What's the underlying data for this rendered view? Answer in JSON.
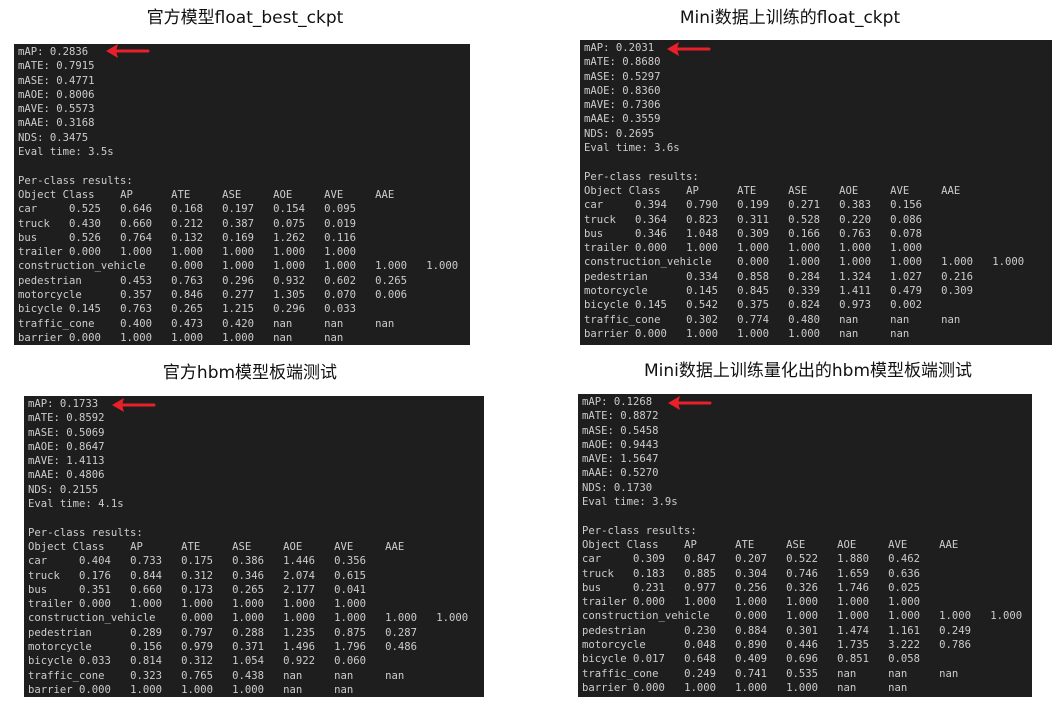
{
  "accent_arrow_color": "#e8202a",
  "terminal_bg": "#1e1e1e",
  "terminal_fg": "#cccccc",
  "columns": [
    "Object Class",
    "AP",
    "ATE",
    "ASE",
    "AOE",
    "AVE",
    "AAE"
  ],
  "per_class_label": "Per-class results:",
  "panels": [
    {
      "title": "官方模型float_best_ckpt",
      "summary": [
        "mAP: 0.2836",
        "mATE: 0.7915",
        "mASE: 0.4771",
        "mAOE: 0.8006",
        "mAVE: 0.5573",
        "mAAE: 0.3168",
        "NDS: 0.3475",
        "Eval time: 3.5s"
      ],
      "rows": [
        [
          "car",
          "0.525",
          "0.646",
          "0.168",
          "0.197",
          "0.154",
          "0.095"
        ],
        [
          "truck",
          "0.430",
          "0.660",
          "0.212",
          "0.387",
          "0.075",
          "0.019"
        ],
        [
          "bus",
          "0.526",
          "0.764",
          "0.132",
          "0.169",
          "1.262",
          "0.116"
        ],
        [
          "trailer",
          "0.000",
          "1.000",
          "1.000",
          "1.000",
          "1.000",
          "1.000"
        ],
        [
          "construction_vehicle",
          "0.000",
          "1.000",
          "1.000",
          "1.000",
          "1.000",
          "1.000"
        ],
        [
          "pedestrian",
          "0.453",
          "0.763",
          "0.296",
          "0.932",
          "0.602",
          "0.265"
        ],
        [
          "motorcycle",
          "0.357",
          "0.846",
          "0.277",
          "1.305",
          "0.070",
          "0.006"
        ],
        [
          "bicycle",
          "0.145",
          "0.763",
          "0.265",
          "1.215",
          "0.296",
          "0.033"
        ],
        [
          "traffic_cone",
          "0.400",
          "0.473",
          "0.420",
          "nan",
          "nan",
          "nan"
        ],
        [
          "barrier",
          "0.000",
          "1.000",
          "1.000",
          "1.000",
          "nan",
          "nan"
        ]
      ]
    },
    {
      "title": "Mini数据上训练的float_ckpt",
      "summary": [
        "mAP: 0.2031",
        "mATE: 0.8680",
        "mASE: 0.5297",
        "mAOE: 0.8360",
        "mAVE: 0.7306",
        "mAAE: 0.3559",
        "NDS: 0.2695",
        "Eval time: 3.6s"
      ],
      "rows": [
        [
          "car",
          "0.394",
          "0.790",
          "0.199",
          "0.271",
          "0.383",
          "0.156"
        ],
        [
          "truck",
          "0.364",
          "0.823",
          "0.311",
          "0.528",
          "0.220",
          "0.086"
        ],
        [
          "bus",
          "0.346",
          "1.048",
          "0.309",
          "0.166",
          "0.763",
          "0.078"
        ],
        [
          "trailer",
          "0.000",
          "1.000",
          "1.000",
          "1.000",
          "1.000",
          "1.000"
        ],
        [
          "construction_vehicle",
          "0.000",
          "1.000",
          "1.000",
          "1.000",
          "1.000",
          "1.000"
        ],
        [
          "pedestrian",
          "0.334",
          "0.858",
          "0.284",
          "1.324",
          "1.027",
          "0.216"
        ],
        [
          "motorcycle",
          "0.145",
          "0.845",
          "0.339",
          "1.411",
          "0.479",
          "0.309"
        ],
        [
          "bicycle",
          "0.145",
          "0.542",
          "0.375",
          "0.824",
          "0.973",
          "0.002"
        ],
        [
          "traffic_cone",
          "0.302",
          "0.774",
          "0.480",
          "nan",
          "nan",
          "nan"
        ],
        [
          "barrier",
          "0.000",
          "1.000",
          "1.000",
          "1.000",
          "nan",
          "nan"
        ]
      ]
    },
    {
      "title": "官方hbm模型板端测试",
      "summary": [
        "mAP: 0.1733",
        "mATE: 0.8592",
        "mASE: 0.5069",
        "mAOE: 0.8647",
        "mAVE: 1.4113",
        "mAAE: 0.4806",
        "NDS: 0.2155",
        "Eval time: 4.1s"
      ],
      "rows": [
        [
          "car",
          "0.404",
          "0.733",
          "0.175",
          "0.386",
          "1.446",
          "0.356"
        ],
        [
          "truck",
          "0.176",
          "0.844",
          "0.312",
          "0.346",
          "2.074",
          "0.615"
        ],
        [
          "bus",
          "0.351",
          "0.660",
          "0.173",
          "0.265",
          "2.177",
          "0.041"
        ],
        [
          "trailer",
          "0.000",
          "1.000",
          "1.000",
          "1.000",
          "1.000",
          "1.000"
        ],
        [
          "construction_vehicle",
          "0.000",
          "1.000",
          "1.000",
          "1.000",
          "1.000",
          "1.000"
        ],
        [
          "pedestrian",
          "0.289",
          "0.797",
          "0.288",
          "1.235",
          "0.875",
          "0.287"
        ],
        [
          "motorcycle",
          "0.156",
          "0.979",
          "0.371",
          "1.496",
          "1.796",
          "0.486"
        ],
        [
          "bicycle",
          "0.033",
          "0.814",
          "0.312",
          "1.054",
          "0.922",
          "0.060"
        ],
        [
          "traffic_cone",
          "0.323",
          "0.765",
          "0.438",
          "nan",
          "nan",
          "nan"
        ],
        [
          "barrier",
          "0.000",
          "1.000",
          "1.000",
          "1.000",
          "nan",
          "nan"
        ]
      ]
    },
    {
      "title": "Mini数据上训练量化出的hbm模型板端测试",
      "summary": [
        "mAP: 0.1268",
        "mATE: 0.8872",
        "mASE: 0.5458",
        "mAOE: 0.9443",
        "mAVE: 1.5647",
        "mAAE: 0.5270",
        "NDS: 0.1730",
        "Eval time: 3.9s"
      ],
      "rows": [
        [
          "car",
          "0.309",
          "0.847",
          "0.207",
          "0.522",
          "1.880",
          "0.462"
        ],
        [
          "truck",
          "0.183",
          "0.885",
          "0.304",
          "0.746",
          "1.659",
          "0.636"
        ],
        [
          "bus",
          "0.231",
          "0.977",
          "0.256",
          "0.326",
          "1.746",
          "0.025"
        ],
        [
          "trailer",
          "0.000",
          "1.000",
          "1.000",
          "1.000",
          "1.000",
          "1.000"
        ],
        [
          "construction_vehicle",
          "0.000",
          "1.000",
          "1.000",
          "1.000",
          "1.000",
          "1.000"
        ],
        [
          "pedestrian",
          "0.230",
          "0.884",
          "0.301",
          "1.474",
          "1.161",
          "0.249"
        ],
        [
          "motorcycle",
          "0.048",
          "0.890",
          "0.446",
          "1.735",
          "3.222",
          "0.786"
        ],
        [
          "bicycle",
          "0.017",
          "0.648",
          "0.409",
          "0.696",
          "0.851",
          "0.058"
        ],
        [
          "traffic_cone",
          "0.249",
          "0.741",
          "0.535",
          "nan",
          "nan",
          "nan"
        ],
        [
          "barrier",
          "0.000",
          "1.000",
          "1.000",
          "1.000",
          "nan",
          "nan"
        ]
      ]
    }
  ]
}
